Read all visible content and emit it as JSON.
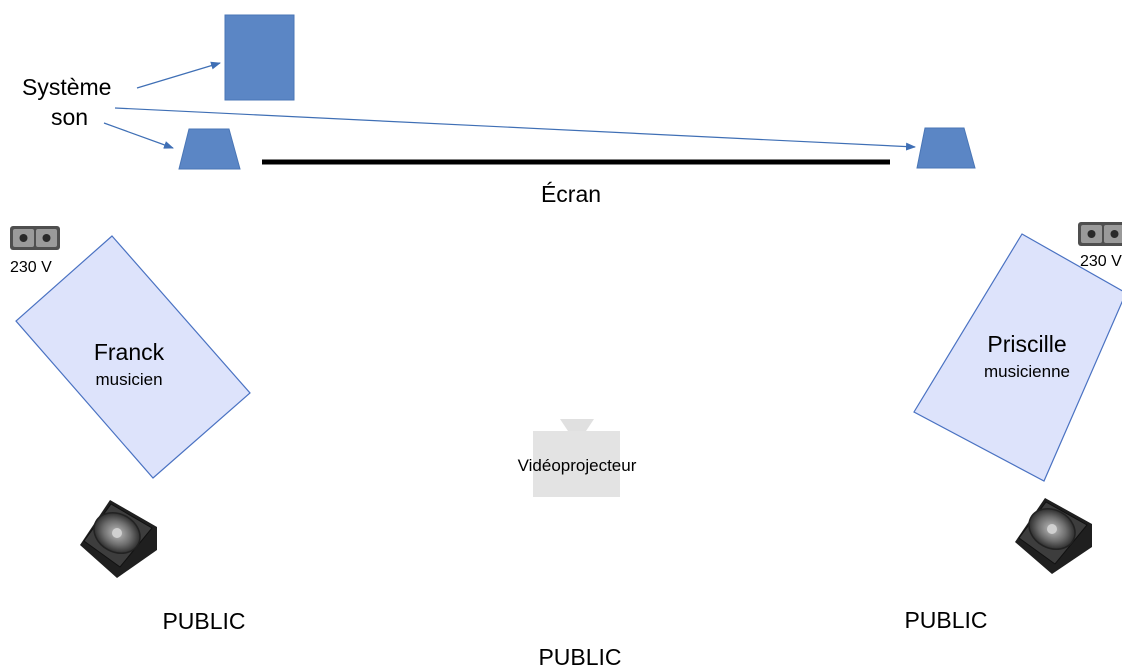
{
  "diagram": {
    "sound_system_label_line1": "Système",
    "sound_system_label_line2": "son",
    "screen_label": "Écran",
    "left_outlet_label": "230 V",
    "right_outlet_label": "230 V",
    "left_musician": {
      "name": "Franck",
      "role": "musicien"
    },
    "right_musician": {
      "name": "Priscille",
      "role": "musicienne"
    },
    "projector_label": "Vidéoprojecteur",
    "public_left": "PUBLIC",
    "public_right": "PUBLIC",
    "public_bottom": "PUBLIC"
  },
  "colors": {
    "equipment_blue": "#5b86c5",
    "equipment_stroke": "#3e6aa8",
    "musician_zone_fill": "#dde3fb",
    "musician_zone_stroke": "#4a72c2",
    "arrow_blue": "#3f6fb5",
    "screen_line": "#000000",
    "projector_gray": "#e3e3e3"
  }
}
